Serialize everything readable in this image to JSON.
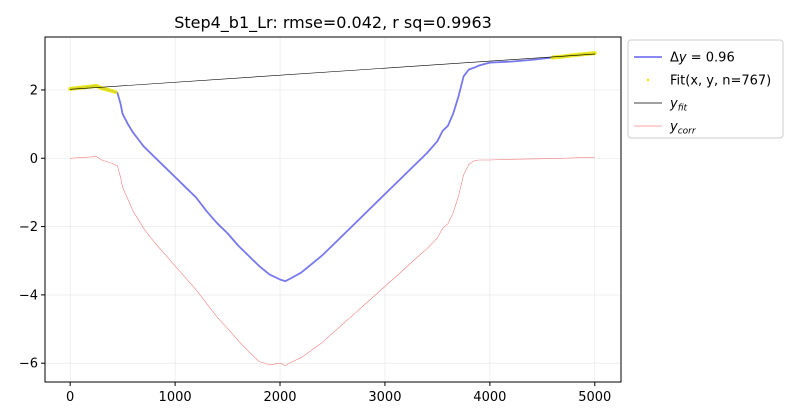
{
  "chart_data": {
    "type": "line",
    "title": "Step4_b1_Lr: rmse=0.042, r sq=0.9963",
    "xlabel": "",
    "ylabel": "",
    "xlim": [
      -240,
      5250
    ],
    "ylim": [
      -6.55,
      3.55
    ],
    "x_ticks": [
      0,
      1000,
      2000,
      3000,
      4000,
      5000
    ],
    "y_ticks": [
      -6,
      -4,
      -2,
      0,
      2
    ],
    "grid": true,
    "legend_placement": "outside-right-top",
    "legend": [
      {
        "key": "dy",
        "prefix": "Δ",
        "italic": "y",
        "rest": " = 0.96",
        "color": "#7777ee"
      },
      {
        "key": "fit",
        "label": "Fit(x, y, n=767)",
        "color": "#e8e800"
      },
      {
        "key": "yfit",
        "italic": "y",
        "sub": "fit",
        "color": "#000000"
      },
      {
        "key": "ycorr",
        "italic": "y",
        "sub": "corr",
        "color": "#f08080"
      }
    ],
    "series": [
      {
        "key": "dy",
        "color": "#7777ee",
        "x": [
          0,
          100,
          200,
          250,
          300,
          400,
          450,
          480,
          500,
          550,
          600,
          650,
          700,
          800,
          900,
          1000,
          1100,
          1200,
          1300,
          1400,
          1500,
          1600,
          1700,
          1800,
          1900,
          2000,
          2050,
          2100,
          2200,
          2300,
          2400,
          2500,
          2600,
          2700,
          2800,
          2900,
          3000,
          3100,
          3200,
          3300,
          3400,
          3500,
          3550,
          3600,
          3650,
          3700,
          3750,
          3800,
          3850,
          3900,
          4000,
          4200,
          4400,
          4600,
          4800,
          5000
        ],
        "y": [
          2.03,
          2.07,
          2.1,
          2.12,
          2.05,
          1.97,
          1.92,
          1.6,
          1.3,
          1.0,
          0.75,
          0.55,
          0.35,
          0.05,
          -0.25,
          -0.55,
          -0.85,
          -1.15,
          -1.55,
          -1.9,
          -2.2,
          -2.55,
          -2.85,
          -3.15,
          -3.4,
          -3.55,
          -3.6,
          -3.52,
          -3.35,
          -3.1,
          -2.85,
          -2.55,
          -2.25,
          -1.95,
          -1.65,
          -1.35,
          -1.05,
          -0.75,
          -0.45,
          -0.15,
          0.15,
          0.5,
          0.8,
          0.95,
          1.3,
          1.8,
          2.4,
          2.6,
          2.65,
          2.72,
          2.8,
          2.83,
          2.88,
          2.95,
          3.02,
          3.08
        ]
      },
      {
        "key": "fit",
        "color": "#e8e800",
        "segments": [
          {
            "x": [
              0,
              100,
              200,
              250,
              300,
              400,
              430
            ],
            "y": [
              2.03,
              2.07,
              2.1,
              2.12,
              2.05,
              1.97,
              1.94
            ]
          },
          {
            "x": [
              4600,
              4700,
              4800,
              4900,
              5000
            ],
            "y": [
              2.95,
              2.98,
              3.02,
              3.05,
              3.08
            ]
          }
        ]
      },
      {
        "key": "yfit",
        "color": "#000000",
        "x": [
          0,
          5000
        ],
        "y": [
          2.02,
          3.05
        ]
      },
      {
        "key": "ycorr",
        "color": "#f08080",
        "x": [
          0,
          100,
          200,
          250,
          300,
          400,
          450,
          480,
          500,
          550,
          600,
          650,
          700,
          800,
          900,
          1000,
          1100,
          1200,
          1300,
          1400,
          1500,
          1600,
          1700,
          1800,
          1900,
          2000,
          2050,
          2100,
          2200,
          2300,
          2400,
          2500,
          2600,
          2700,
          2800,
          2900,
          3000,
          3100,
          3200,
          3300,
          3400,
          3500,
          3550,
          3600,
          3650,
          3700,
          3750,
          3800,
          3850,
          3900,
          4000,
          4200,
          4400,
          4600,
          4800,
          5000
        ],
        "y": [
          0.0,
          0.02,
          0.04,
          0.05,
          -0.05,
          -0.15,
          -0.22,
          -0.55,
          -0.85,
          -1.2,
          -1.55,
          -1.8,
          -2.05,
          -2.45,
          -2.8,
          -3.15,
          -3.5,
          -3.85,
          -4.25,
          -4.65,
          -4.98,
          -5.33,
          -5.65,
          -5.95,
          -6.05,
          -6.0,
          -6.07,
          -5.98,
          -5.84,
          -5.62,
          -5.4,
          -5.12,
          -4.85,
          -4.58,
          -4.3,
          -4.03,
          -3.75,
          -3.48,
          -3.2,
          -2.92,
          -2.65,
          -2.33,
          -2.05,
          -1.92,
          -1.6,
          -1.12,
          -0.48,
          -0.18,
          -0.07,
          -0.05,
          -0.05,
          -0.03,
          -0.02,
          -0.01,
          0.01,
          0.03
        ]
      }
    ]
  }
}
